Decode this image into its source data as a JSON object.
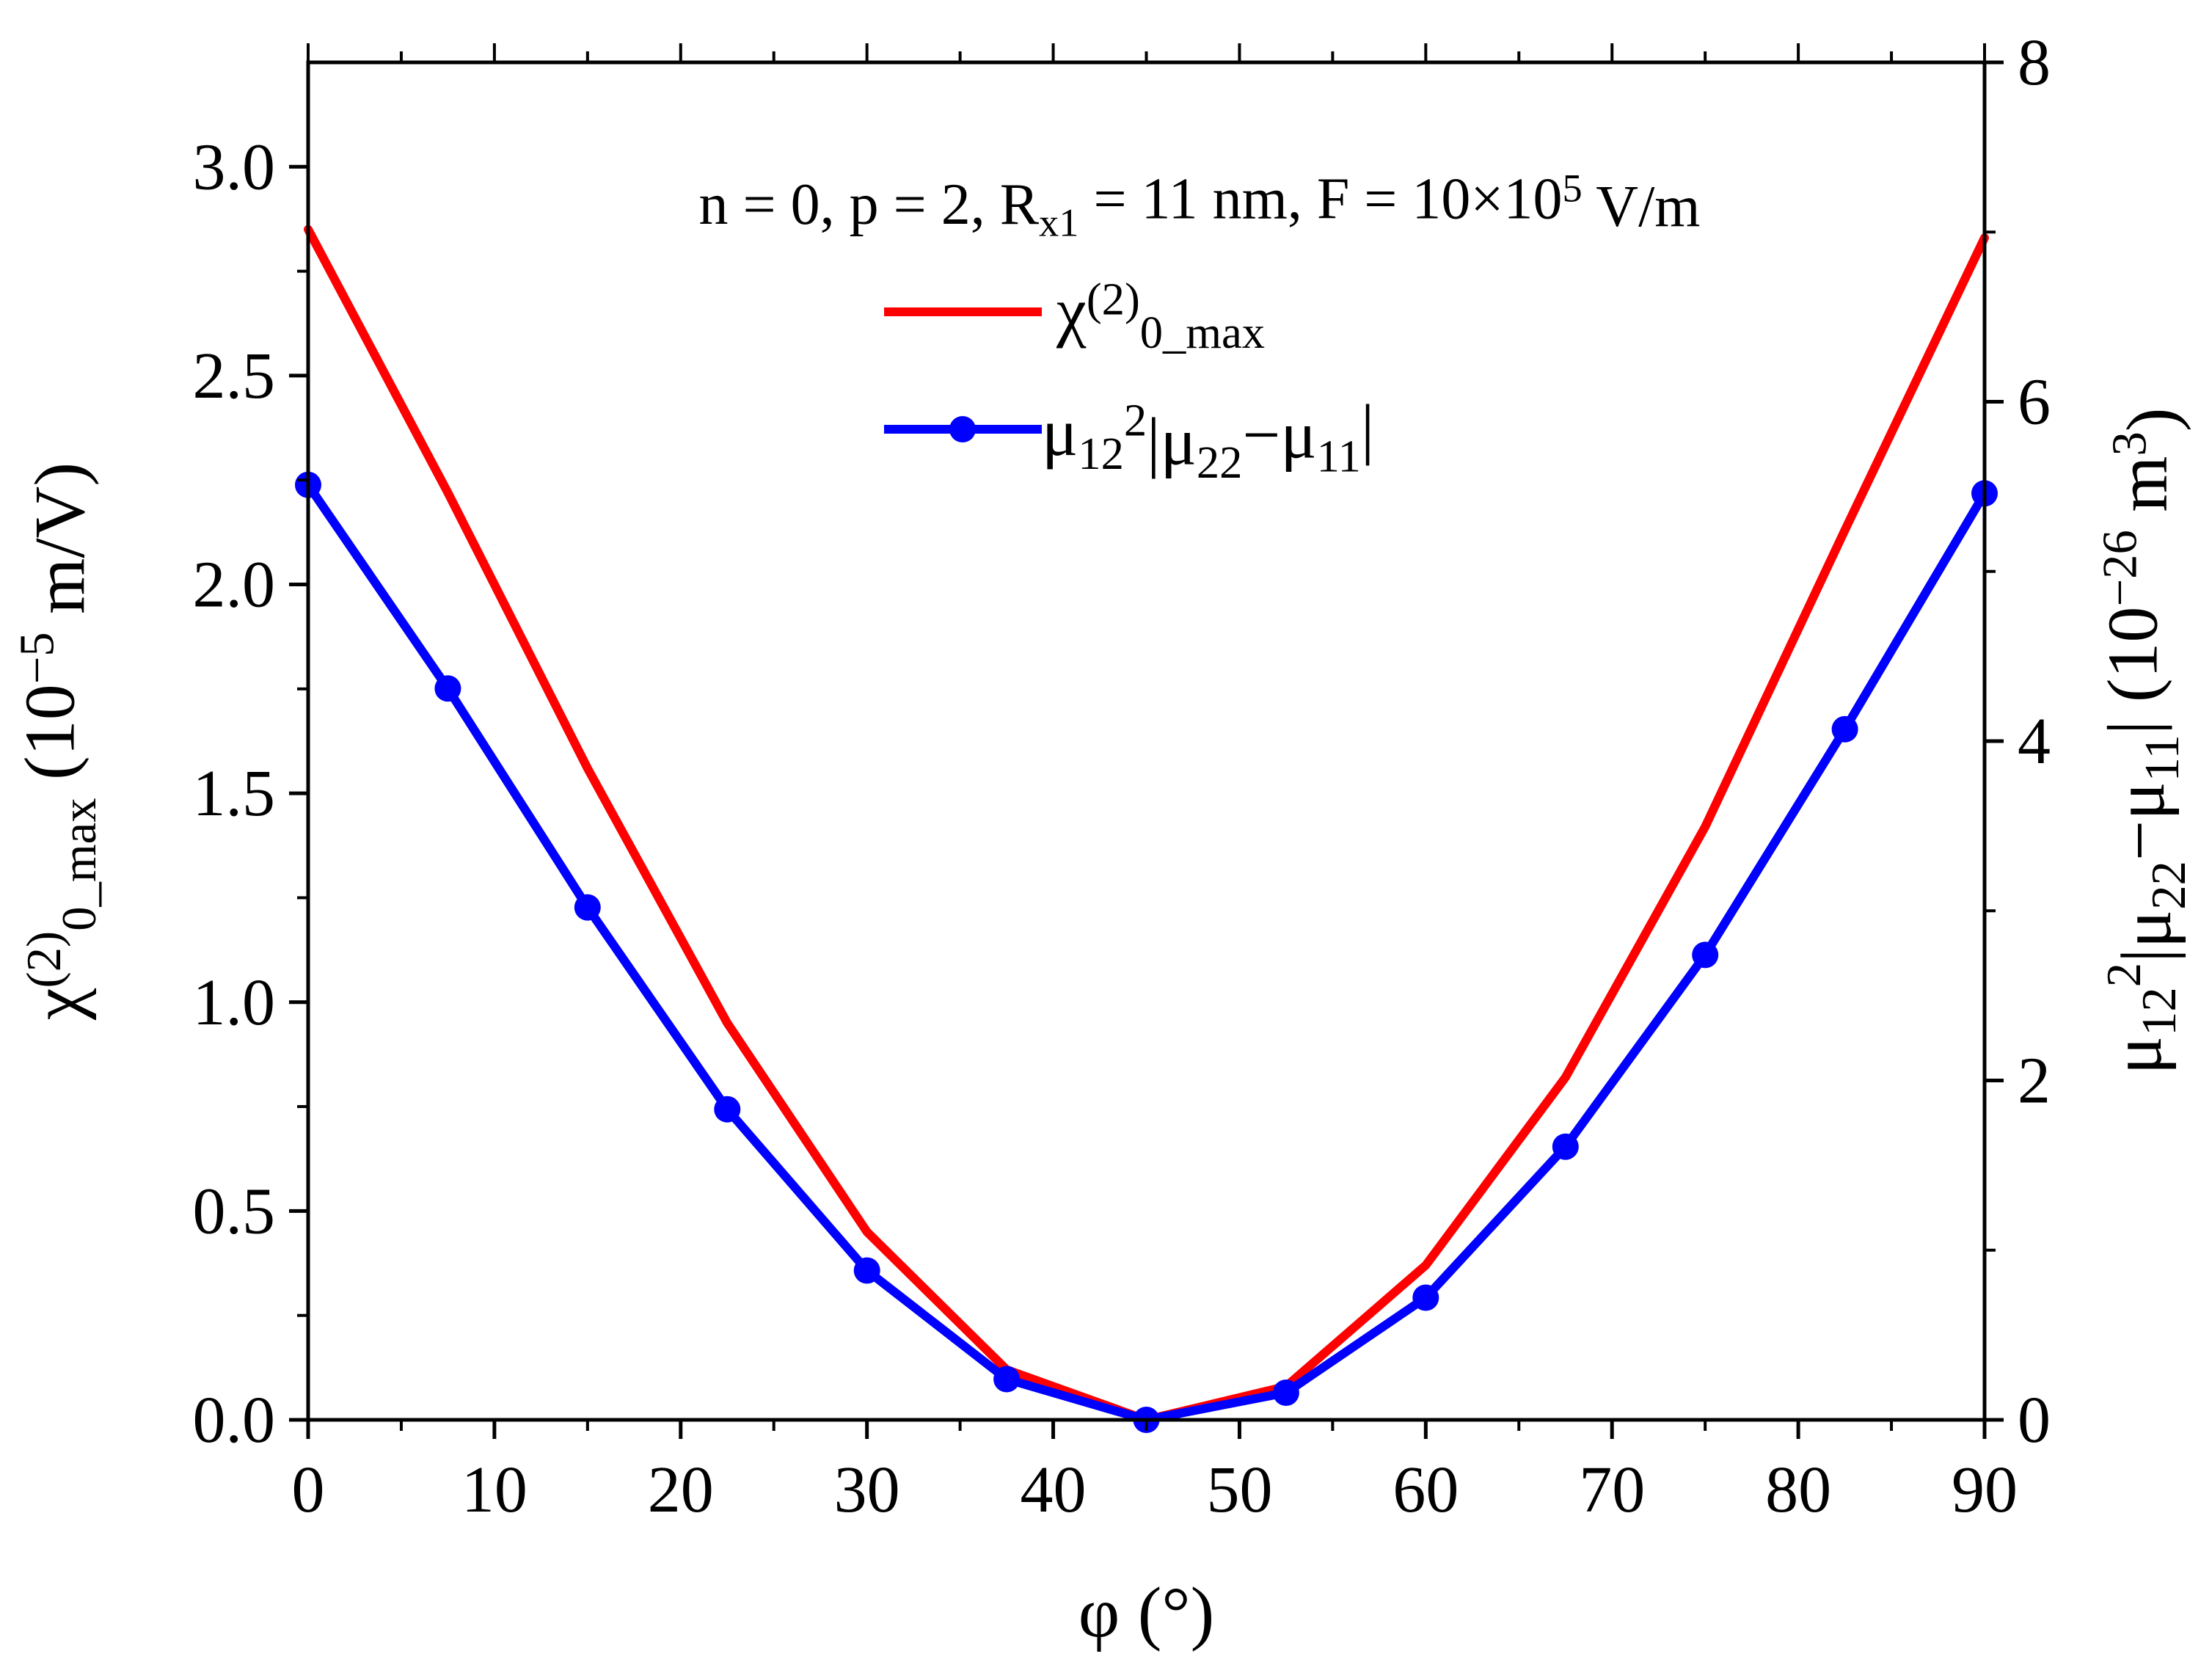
{
  "chart_data": {
    "type": "line",
    "annotation": "n = 0, p = 2, R<sub>x1</sub> = 11 nm, F = 10×10<sup>5</sup> V/m",
    "xlabel": "φ (°)",
    "ylabel": "χ<sup>(2)</sup><sub>0_max</sub> (10<sup>−5</sup> m/V)",
    "y2label": "μ<sub>12</sub><sup>2</sup>|μ<sub>22</sub>−μ<sub>11</sub>| (10<sup>−26</sup> m<sup>3</sup>)",
    "xlim": [
      0,
      90
    ],
    "ylim": [
      0,
      3.25
    ],
    "y2lim": [
      0,
      8
    ],
    "x_ticks": [
      "0",
      "10",
      "20",
      "30",
      "40",
      "50",
      "60",
      "70",
      "80",
      "90"
    ],
    "y_ticks": [
      "0.0",
      "0.5",
      "1.0",
      "1.5",
      "2.0",
      "2.5",
      "3.0"
    ],
    "y2_ticks": [
      "0",
      "2",
      "4",
      "6",
      "8"
    ],
    "series": [
      {
        "name": "χ<sup>(2)</sup><sub>0_max</sub>",
        "axis": "left",
        "color": "#ff0000",
        "marker": "none",
        "x": [
          0,
          7.5,
          15,
          22.5,
          30,
          37.5,
          45,
          52.5,
          60,
          67.5,
          75,
          82.5,
          90
        ],
        "y": [
          2.85,
          2.22,
          1.56,
          0.95,
          0.45,
          0.12,
          0.0,
          0.08,
          0.37,
          0.82,
          1.42,
          2.13,
          2.83
        ]
      },
      {
        "name": "μ<sub>12</sub><sup>2</sup>|μ<sub>22</sub>−μ<sub>11</sub>|",
        "axis": "right",
        "color": "#0000ff",
        "marker": "circle",
        "x": [
          0,
          7.5,
          15,
          22.5,
          30,
          37.5,
          45,
          52.5,
          60,
          67.5,
          75,
          82.5,
          90
        ],
        "y": [
          5.51,
          4.31,
          3.02,
          1.83,
          0.88,
          0.24,
          0.0,
          0.16,
          0.72,
          1.61,
          2.74,
          4.07,
          5.46
        ]
      }
    ]
  }
}
